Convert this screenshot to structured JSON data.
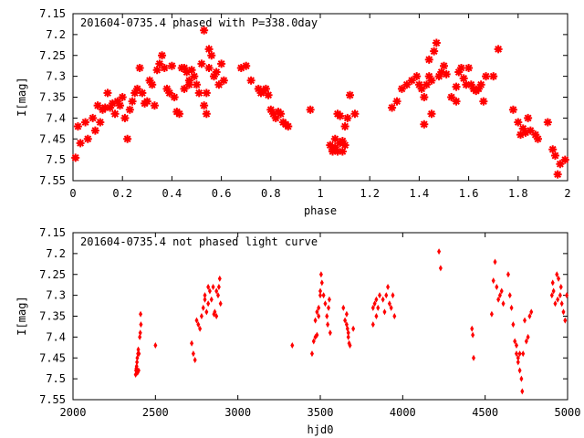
{
  "chart_data": [
    {
      "type": "scatter",
      "title": "201604-0735.4 phased with P=338.0day",
      "xlabel": "phase",
      "ylabel": "I[mag]",
      "xlim": [
        0,
        2
      ],
      "ylim": [
        7.55,
        7.15
      ],
      "y_inverted": true,
      "xticks": [
        "0",
        "0.2",
        "0.4",
        "0.6",
        "0.8",
        "1",
        "1.2",
        "1.4",
        "1.6",
        "1.8",
        "2"
      ],
      "xtick_values": [
        0,
        0.2,
        0.4,
        0.6,
        0.8,
        1,
        1.2,
        1.4,
        1.6,
        1.8,
        2
      ],
      "yticks": [
        "7.15",
        "7.2",
        "7.25",
        "7.3",
        "7.35",
        "7.4",
        "7.45",
        "7.5",
        "7.55"
      ],
      "ytick_values": [
        7.15,
        7.2,
        7.25,
        7.3,
        7.35,
        7.4,
        7.45,
        7.5,
        7.55
      ],
      "marker_color": "#ff0000",
      "points": [
        [
          0.01,
          7.495
        ],
        [
          0.02,
          7.42
        ],
        [
          0.03,
          7.46
        ],
        [
          0.05,
          7.41
        ],
        [
          0.06,
          7.45
        ],
        [
          0.08,
          7.4
        ],
        [
          0.09,
          7.43
        ],
        [
          0.1,
          7.37
        ],
        [
          0.11,
          7.41
        ],
        [
          0.12,
          7.38
        ],
        [
          0.13,
          7.375
        ],
        [
          0.14,
          7.34
        ],
        [
          0.15,
          7.375
        ],
        [
          0.16,
          7.365
        ],
        [
          0.17,
          7.39
        ],
        [
          0.18,
          7.36
        ],
        [
          0.19,
          7.37
        ],
        [
          0.2,
          7.35
        ],
        [
          0.21,
          7.4
        ],
        [
          0.22,
          7.45
        ],
        [
          0.23,
          7.38
        ],
        [
          0.24,
          7.36
        ],
        [
          0.25,
          7.34
        ],
        [
          0.26,
          7.33
        ],
        [
          0.27,
          7.28
        ],
        [
          0.28,
          7.34
        ],
        [
          0.29,
          7.365
        ],
        [
          0.3,
          7.36
        ],
        [
          0.31,
          7.31
        ],
        [
          0.32,
          7.32
        ],
        [
          0.33,
          7.37
        ],
        [
          0.34,
          7.285
        ],
        [
          0.35,
          7.27
        ],
        [
          0.36,
          7.25
        ],
        [
          0.37,
          7.28
        ],
        [
          0.38,
          7.33
        ],
        [
          0.39,
          7.34
        ],
        [
          0.4,
          7.275
        ],
        [
          0.41,
          7.35
        ],
        [
          0.42,
          7.385
        ],
        [
          0.43,
          7.39
        ],
        [
          0.44,
          7.28
        ],
        [
          0.45,
          7.28
        ],
        [
          0.46,
          7.29
        ],
        [
          0.47,
          7.31
        ],
        [
          0.48,
          7.285
        ],
        [
          0.49,
          7.3
        ],
        [
          0.5,
          7.32
        ],
        [
          0.51,
          7.34
        ],
        [
          0.52,
          7.27
        ],
        [
          0.53,
          7.19
        ],
        [
          0.54,
          7.34
        ],
        [
          0.55,
          7.235
        ],
        [
          0.56,
          7.25
        ],
        [
          0.57,
          7.3
        ],
        [
          0.58,
          7.29
        ],
        [
          0.59,
          7.32
        ],
        [
          0.53,
          7.37
        ],
        [
          0.54,
          7.39
        ],
        [
          0.6,
          7.27
        ],
        [
          0.61,
          7.31
        ],
        [
          0.55,
          7.28
        ],
        [
          0.45,
          7.33
        ],
        [
          0.47,
          7.32
        ],
        [
          0.68,
          7.28
        ],
        [
          0.7,
          7.275
        ],
        [
          0.72,
          7.31
        ],
        [
          0.75,
          7.33
        ],
        [
          0.76,
          7.34
        ],
        [
          0.77,
          7.335
        ],
        [
          0.78,
          7.33
        ],
        [
          0.79,
          7.345
        ],
        [
          0.8,
          7.38
        ],
        [
          0.81,
          7.39
        ],
        [
          0.82,
          7.4
        ],
        [
          0.83,
          7.385
        ],
        [
          0.84,
          7.39
        ],
        [
          0.85,
          7.41
        ],
        [
          0.86,
          7.415
        ],
        [
          0.87,
          7.42
        ],
        [
          0.96,
          7.38
        ],
        [
          1.04,
          7.465
        ],
        [
          1.05,
          7.475
        ],
        [
          1.06,
          7.47
        ],
        [
          1.07,
          7.48
        ],
        [
          1.08,
          7.46
        ],
        [
          1.09,
          7.455
        ],
        [
          1.1,
          7.465
        ],
        [
          1.06,
          7.45
        ],
        [
          1.07,
          7.39
        ],
        [
          1.08,
          7.395
        ],
        [
          1.1,
          7.42
        ],
        [
          1.11,
          7.4
        ],
        [
          1.12,
          7.345
        ],
        [
          1.14,
          7.39
        ],
        [
          1.05,
          7.48
        ],
        [
          1.09,
          7.48
        ],
        [
          1.29,
          7.375
        ],
        [
          1.31,
          7.36
        ],
        [
          1.33,
          7.33
        ],
        [
          1.35,
          7.32
        ],
        [
          1.37,
          7.31
        ],
        [
          1.39,
          7.3
        ],
        [
          1.41,
          7.33
        ],
        [
          1.42,
          7.35
        ],
        [
          1.42,
          7.415
        ],
        [
          1.43,
          7.32
        ],
        [
          1.44,
          7.3
        ],
        [
          1.45,
          7.31
        ],
        [
          1.46,
          7.24
        ],
        [
          1.47,
          7.22
        ],
        [
          1.48,
          7.3
        ],
        [
          1.49,
          7.29
        ],
        [
          1.5,
          7.275
        ],
        [
          1.51,
          7.295
        ],
        [
          1.53,
          7.35
        ],
        [
          1.55,
          7.325
        ],
        [
          1.56,
          7.29
        ],
        [
          1.57,
          7.28
        ],
        [
          1.58,
          7.305
        ],
        [
          1.59,
          7.32
        ],
        [
          1.6,
          7.28
        ],
        [
          1.61,
          7.32
        ],
        [
          1.62,
          7.33
        ],
        [
          1.63,
          7.335
        ],
        [
          1.64,
          7.33
        ],
        [
          1.65,
          7.32
        ],
        [
          1.66,
          7.36
        ],
        [
          1.67,
          7.3
        ],
        [
          1.7,
          7.3
        ],
        [
          1.72,
          7.235
        ],
        [
          1.78,
          7.38
        ],
        [
          1.8,
          7.41
        ],
        [
          1.81,
          7.44
        ],
        [
          1.82,
          7.425
        ],
        [
          1.83,
          7.435
        ],
        [
          1.84,
          7.4
        ],
        [
          1.85,
          7.43
        ],
        [
          1.87,
          7.44
        ],
        [
          1.88,
          7.45
        ],
        [
          1.92,
          7.41
        ],
        [
          1.94,
          7.475
        ],
        [
          1.95,
          7.49
        ],
        [
          1.96,
          7.535
        ],
        [
          1.97,
          7.51
        ],
        [
          1.99,
          7.5
        ],
        [
          1.55,
          7.36
        ],
        [
          1.4,
          7.32
        ],
        [
          1.44,
          7.26
        ],
        [
          1.45,
          7.39
        ]
      ]
    },
    {
      "type": "scatter",
      "title": "201604-0735.4 not phased light curve",
      "xlabel": "hjd0",
      "ylabel": "I[mag]",
      "xlim": [
        2000,
        5000
      ],
      "ylim": [
        7.55,
        7.15
      ],
      "y_inverted": true,
      "xticks": [
        "2000",
        "2500",
        "3000",
        "3500",
        "4000",
        "4500",
        "5000"
      ],
      "xtick_values": [
        2000,
        2500,
        3000,
        3500,
        4000,
        4500,
        5000
      ],
      "yticks": [
        "7.15",
        "7.2",
        "7.25",
        "7.3",
        "7.35",
        "7.4",
        "7.45",
        "7.5",
        "7.55"
      ],
      "ytick_values": [
        7.15,
        7.2,
        7.25,
        7.3,
        7.35,
        7.4,
        7.45,
        7.5,
        7.55
      ],
      "marker_color": "#ff0000",
      "points": [
        [
          2380,
          7.49
        ],
        [
          2382,
          7.48
        ],
        [
          2384,
          7.475
        ],
        [
          2386,
          7.47
        ],
        [
          2388,
          7.46
        ],
        [
          2390,
          7.45
        ],
        [
          2392,
          7.485
        ],
        [
          2394,
          7.44
        ],
        [
          2396,
          7.43
        ],
        [
          2398,
          7.48
        ],
        [
          2400,
          7.44
        ],
        [
          2405,
          7.4
        ],
        [
          2408,
          7.39
        ],
        [
          2410,
          7.345
        ],
        [
          2412,
          7.37
        ],
        [
          2500,
          7.42
        ],
        [
          2720,
          7.415
        ],
        [
          2730,
          7.44
        ],
        [
          2740,
          7.455
        ],
        [
          2750,
          7.36
        ],
        [
          2760,
          7.37
        ],
        [
          2770,
          7.38
        ],
        [
          2780,
          7.35
        ],
        [
          2790,
          7.33
        ],
        [
          2800,
          7.3
        ],
        [
          2810,
          7.34
        ],
        [
          2820,
          7.32
        ],
        [
          2830,
          7.29
        ],
        [
          2840,
          7.31
        ],
        [
          2850,
          7.28
        ],
        [
          2860,
          7.34
        ],
        [
          2870,
          7.35
        ],
        [
          2880,
          7.3
        ],
        [
          2885,
          7.28
        ],
        [
          2890,
          7.26
        ],
        [
          2895,
          7.32
        ],
        [
          2800,
          7.31
        ],
        [
          2820,
          7.28
        ],
        [
          2870,
          7.29
        ],
        [
          2855,
          7.345
        ],
        [
          3330,
          7.42
        ],
        [
          3450,
          7.44
        ],
        [
          3460,
          7.41
        ],
        [
          3470,
          7.36
        ],
        [
          3480,
          7.34
        ],
        [
          3490,
          7.33
        ],
        [
          3500,
          7.29
        ],
        [
          3505,
          7.25
        ],
        [
          3510,
          7.27
        ],
        [
          3520,
          7.3
        ],
        [
          3530,
          7.32
        ],
        [
          3540,
          7.35
        ],
        [
          3545,
          7.37
        ],
        [
          3550,
          7.33
        ],
        [
          3555,
          7.31
        ],
        [
          3560,
          7.39
        ],
        [
          3470,
          7.4
        ],
        [
          3480,
          7.395
        ],
        [
          3490,
          7.35
        ],
        [
          3500,
          7.3
        ],
        [
          3640,
          7.33
        ],
        [
          3650,
          7.36
        ],
        [
          3660,
          7.37
        ],
        [
          3665,
          7.38
        ],
        [
          3670,
          7.4
        ],
        [
          3675,
          7.415
        ],
        [
          3680,
          7.42
        ],
        [
          3700,
          7.38
        ],
        [
          3660,
          7.345
        ],
        [
          3670,
          7.39
        ],
        [
          3820,
          7.33
        ],
        [
          3830,
          7.32
        ],
        [
          3840,
          7.31
        ],
        [
          3850,
          7.33
        ],
        [
          3860,
          7.3
        ],
        [
          3880,
          7.31
        ],
        [
          3890,
          7.34
        ],
        [
          3900,
          7.3
        ],
        [
          3910,
          7.28
        ],
        [
          3920,
          7.32
        ],
        [
          3930,
          7.33
        ],
        [
          3940,
          7.3
        ],
        [
          3950,
          7.35
        ],
        [
          3820,
          7.37
        ],
        [
          3840,
          7.35
        ],
        [
          4220,
          7.195
        ],
        [
          4230,
          7.235
        ],
        [
          4420,
          7.38
        ],
        [
          4425,
          7.395
        ],
        [
          4430,
          7.45
        ],
        [
          4540,
          7.345
        ],
        [
          4550,
          7.265
        ],
        [
          4560,
          7.22
        ],
        [
          4570,
          7.28
        ],
        [
          4580,
          7.31
        ],
        [
          4590,
          7.3
        ],
        [
          4600,
          7.29
        ],
        [
          4610,
          7.32
        ],
        [
          4640,
          7.25
        ],
        [
          4650,
          7.3
        ],
        [
          4660,
          7.33
        ],
        [
          4670,
          7.37
        ],
        [
          4680,
          7.41
        ],
        [
          4690,
          7.44
        ],
        [
          4700,
          7.46
        ],
        [
          4710,
          7.48
        ],
        [
          4720,
          7.5
        ],
        [
          4725,
          7.53
        ],
        [
          4730,
          7.44
        ],
        [
          4740,
          7.36
        ],
        [
          4750,
          7.41
        ],
        [
          4760,
          7.4
        ],
        [
          4770,
          7.35
        ],
        [
          4780,
          7.34
        ],
        [
          4690,
          7.42
        ],
        [
          4700,
          7.45
        ],
        [
          4710,
          7.44
        ],
        [
          4905,
          7.3
        ],
        [
          4915,
          7.29
        ],
        [
          4925,
          7.32
        ],
        [
          4935,
          7.25
        ],
        [
          4945,
          7.26
        ],
        [
          4955,
          7.3
        ],
        [
          4965,
          7.32
        ],
        [
          4975,
          7.34
        ],
        [
          4985,
          7.36
        ],
        [
          4995,
          7.3
        ],
        [
          4910,
          7.27
        ],
        [
          4940,
          7.31
        ],
        [
          4960,
          7.28
        ]
      ]
    }
  ]
}
